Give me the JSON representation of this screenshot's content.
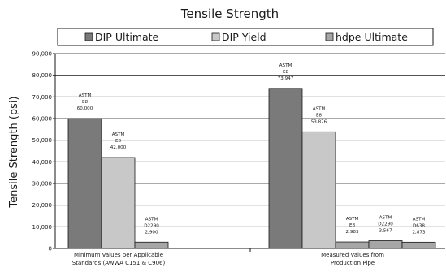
{
  "chart_data": {
    "type": "bar",
    "title": "Tensile Strength",
    "ylabel": "Tensile Strength (psi)",
    "xlabel": "",
    "ylim": [
      0,
      90000
    ],
    "yticks": [
      "0",
      "10,000",
      "20,000",
      "30,000",
      "40,000",
      "50,000",
      "60,000",
      "70,000",
      "80,000",
      "90,000"
    ],
    "yticks_values": [
      0,
      10000,
      20000,
      30000,
      40000,
      50000,
      60000,
      70000,
      80000,
      90000
    ],
    "grid": true,
    "legend_position": "top",
    "categories": [
      [
        "Minimum Values per Applicable",
        "Standards (AWWA C151 & C906)"
      ],
      [
        "Measured Values from",
        "Production Pipe"
      ]
    ],
    "series": [
      {
        "name": "DIP Ultimate",
        "color": "#7a7a7a",
        "values": [
          60000,
          73947
        ]
      },
      {
        "name": "DIP Yield",
        "color": "#c8c8c8",
        "values": [
          42000,
          53876
        ]
      },
      {
        "name": "hdpe Ultimate",
        "color": "#a6a6a6",
        "values": [
          null,
          null
        ]
      }
    ],
    "bars": [
      {
        "group": 0,
        "slot": 0,
        "color": "#7a7a7a",
        "value": 60000,
        "label": [
          "ASTM",
          "E8",
          "60,000"
        ]
      },
      {
        "group": 0,
        "slot": 1,
        "color": "#c8c8c8",
        "value": 42000,
        "label": [
          "ASTM",
          "E8",
          "42,000"
        ]
      },
      {
        "group": 0,
        "slot": 2,
        "color": "#a6a6a6",
        "value": 2900,
        "label": [
          "ASTM",
          "D2290",
          "2,900"
        ]
      },
      {
        "group": 1,
        "slot": 0,
        "color": "#7a7a7a",
        "value": 73947,
        "label": [
          "ASTM",
          "E8",
          "73,947"
        ]
      },
      {
        "group": 1,
        "slot": 1,
        "color": "#c8c8c8",
        "value": 53876,
        "label": [
          "ASTM",
          "E8",
          "53,876"
        ]
      },
      {
        "group": 1,
        "slot": 2,
        "color": "#a6a6a6",
        "value": 2983,
        "label": [
          "ASTM",
          "E8",
          "2,983"
        ]
      },
      {
        "group": 1,
        "slot": 3,
        "color": "#a6a6a6",
        "value": 3567,
        "label": [
          "ASTM",
          "D2290",
          "3,567"
        ]
      },
      {
        "group": 1,
        "slot": 4,
        "color": "#a6a6a6",
        "value": 2873,
        "label": [
          "ASTM",
          "D638",
          "2,873"
        ]
      }
    ]
  }
}
